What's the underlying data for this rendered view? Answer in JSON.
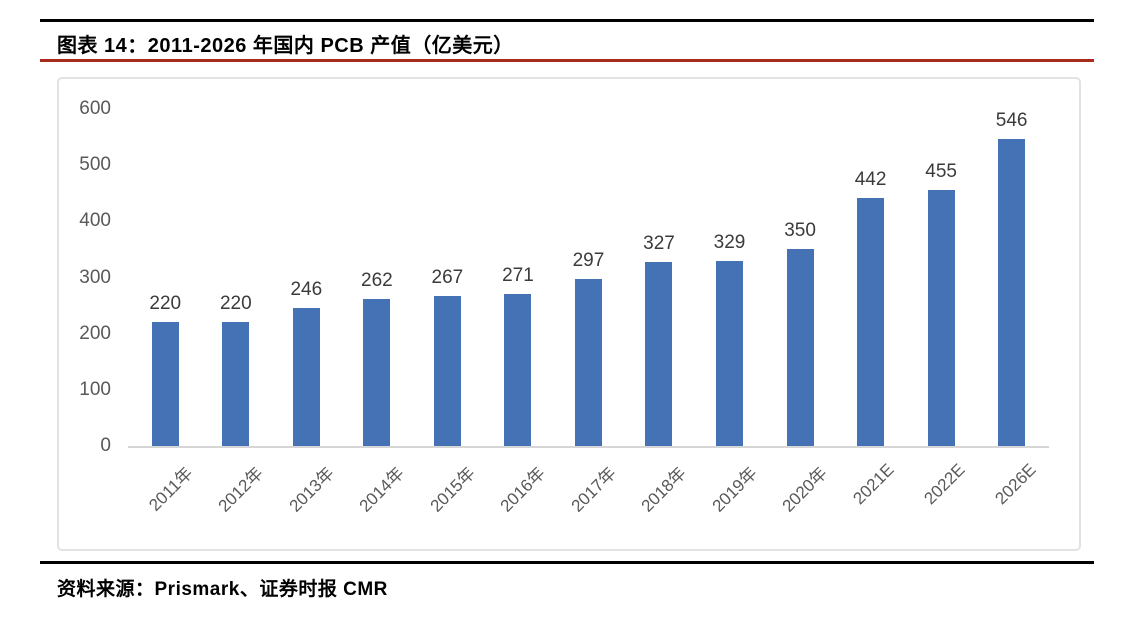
{
  "header": {
    "title": "图表 14：2011-2026 年国内 PCB 产值（亿美元）"
  },
  "footer": {
    "source": "资料来源：Prismark、证券时报 CMR"
  },
  "colors": {
    "bar": "#4472B4",
    "rule_red": "#A82B1D",
    "rule_black": "#000000",
    "axis_text": "#595959",
    "value_label_text": "#3B3B3B",
    "frame_gray": "#E2E2E2",
    "baseline_gray": "#D6D6D6"
  },
  "chart_data": {
    "type": "bar",
    "title": "2011-2026 年国内 PCB 产值（亿美元）",
    "categories": [
      "2011年",
      "2012年",
      "2013年",
      "2014年",
      "2015年",
      "2016年",
      "2017年",
      "2018年",
      "2019年",
      "2020年",
      "2021E",
      "2022E",
      "2026E"
    ],
    "values": [
      220,
      220,
      246,
      262,
      267,
      271,
      297,
      327,
      329,
      350,
      442,
      455,
      546
    ],
    "xlabel": "",
    "ylabel": "",
    "ylim": [
      0,
      600
    ],
    "yticks": [
      0,
      100,
      200,
      300,
      400,
      500,
      600
    ],
    "grid": false,
    "legend": null,
    "data_labels": true,
    "x_label_rotation_deg": -45
  }
}
